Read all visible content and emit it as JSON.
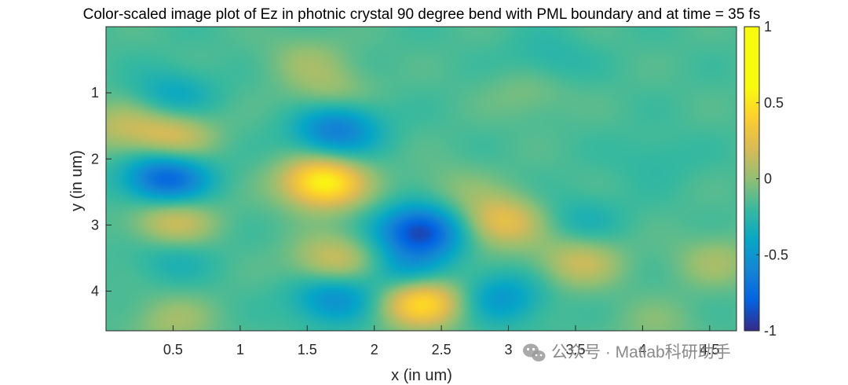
{
  "chart_data": {
    "type": "heatmap",
    "title": "Color-scaled image plot of Ez in photnic crystal 90 degree bend with PML boundary and at time = 35 fs",
    "xlabel": "x (in um)",
    "ylabel": "y (in um)",
    "xlim": [
      0.0,
      4.7
    ],
    "ylim": [
      0.0,
      4.6
    ],
    "y_reversed": true,
    "x_ticks": [
      0.5,
      1,
      1.5,
      2,
      2.5,
      3,
      3.5,
      4,
      4.5
    ],
    "x_tick_labels": [
      "0.5",
      "1",
      "1.5",
      "2",
      "2.5",
      "3",
      "3.5",
      "4",
      "4.5"
    ],
    "y_ticks": [
      1,
      2,
      3,
      4
    ],
    "y_tick_labels": [
      "1",
      "2",
      "3",
      "4"
    ],
    "colorbar": {
      "range": [
        -1,
        1
      ],
      "ticks": [
        1,
        0.5,
        0,
        -0.5,
        -1
      ],
      "tick_labels": [
        "1",
        "0.5",
        "0",
        "-0.5",
        "-1"
      ],
      "colormap": "parula"
    },
    "baseline": 0.05,
    "features": [
      {
        "x": 0.45,
        "y": 2.3,
        "value": -0.8
      },
      {
        "x": 1.62,
        "y": 2.35,
        "value": 0.95
      },
      {
        "x": 2.35,
        "y": 3.1,
        "value": -0.95
      },
      {
        "x": 2.35,
        "y": 4.15,
        "value": 0.85
      },
      {
        "x": 2.95,
        "y": 2.95,
        "value": 0.55
      },
      {
        "x": 0.5,
        "y": 2.95,
        "value": 0.45
      },
      {
        "x": 0.5,
        "y": 1.65,
        "value": 0.45
      },
      {
        "x": 0.1,
        "y": 1.5,
        "value": 0.3
      },
      {
        "x": 0.5,
        "y": 1.05,
        "value": -0.3
      },
      {
        "x": 1.7,
        "y": 1.65,
        "value": -0.45
      },
      {
        "x": 1.75,
        "y": 1.35,
        "value": -0.3
      },
      {
        "x": 1.5,
        "y": 0.5,
        "value": 0.2
      },
      {
        "x": 1.7,
        "y": 1.05,
        "value": 0.3
      },
      {
        "x": 1.7,
        "y": 3.55,
        "value": 0.45
      },
      {
        "x": 1.7,
        "y": 4.1,
        "value": -0.5
      },
      {
        "x": 2.95,
        "y": 4.1,
        "value": -0.4
      },
      {
        "x": 0.5,
        "y": 3.5,
        "value": -0.2
      },
      {
        "x": 0.5,
        "y": 4.45,
        "value": 0.25
      },
      {
        "x": 2.25,
        "y": 3.75,
        "value": -0.4
      },
      {
        "x": 2.6,
        "y": 2.45,
        "value": 0.15
      },
      {
        "x": 3.5,
        "y": 3.55,
        "value": 0.15
      },
      {
        "x": 3.55,
        "y": 2.95,
        "value": -0.2
      },
      {
        "x": 3.55,
        "y": 3.55,
        "value": 0.25
      },
      {
        "x": 4.55,
        "y": 3.55,
        "value": 0.25
      },
      {
        "x": 3.15,
        "y": 1.0,
        "value": 0.15
      },
      {
        "x": 3.3,
        "y": 0.5,
        "value": -0.15
      },
      {
        "x": 4.1,
        "y": 2.0,
        "value": -0.1
      },
      {
        "x": 4.1,
        "y": 4.5,
        "value": 0.15
      }
    ]
  },
  "watermark": {
    "icon": "wechat-icon",
    "text": "公众号 · Matlab科研助手"
  }
}
